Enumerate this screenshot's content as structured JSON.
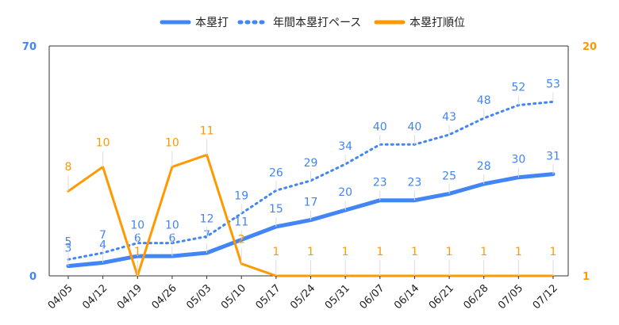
{
  "chart_data": {
    "type": "line",
    "categories": [
      "04/05",
      "04/12",
      "04/19",
      "04/26",
      "05/03",
      "05/10",
      "05/17",
      "05/24",
      "05/31",
      "06/07",
      "06/14",
      "06/21",
      "06/28",
      "07/05",
      "07/12"
    ],
    "series": [
      {
        "name": "本塁打",
        "axis": "left",
        "style": "solid",
        "color": "#4285f4",
        "values": [
          3,
          4,
          6,
          6,
          7,
          11,
          15,
          17,
          20,
          23,
          23,
          25,
          28,
          30,
          31
        ]
      },
      {
        "name": "年間本塁打ペース",
        "axis": "left",
        "style": "dotted",
        "color": "#4285f4",
        "values": [
          5,
          7,
          10,
          10,
          12,
          19,
          26,
          29,
          34,
          40,
          40,
          43,
          48,
          52,
          53
        ]
      },
      {
        "name": "本塁打順位",
        "axis": "right",
        "style": "solid",
        "color": "#ff9900",
        "values": [
          8,
          10,
          1,
          10,
          11,
          2,
          1,
          1,
          1,
          1,
          1,
          1,
          1,
          1,
          1
        ]
      }
    ],
    "left_axis": {
      "min": 0,
      "max": 70,
      "ticks": [
        "0",
        "70"
      ],
      "color": "#4285f4"
    },
    "right_axis": {
      "min": 1,
      "max": 20,
      "ticks": [
        "1",
        "20"
      ],
      "color": "#ff9900",
      "inverted_from_top": false
    },
    "legend": {
      "position": "top-center"
    },
    "grid": false
  }
}
